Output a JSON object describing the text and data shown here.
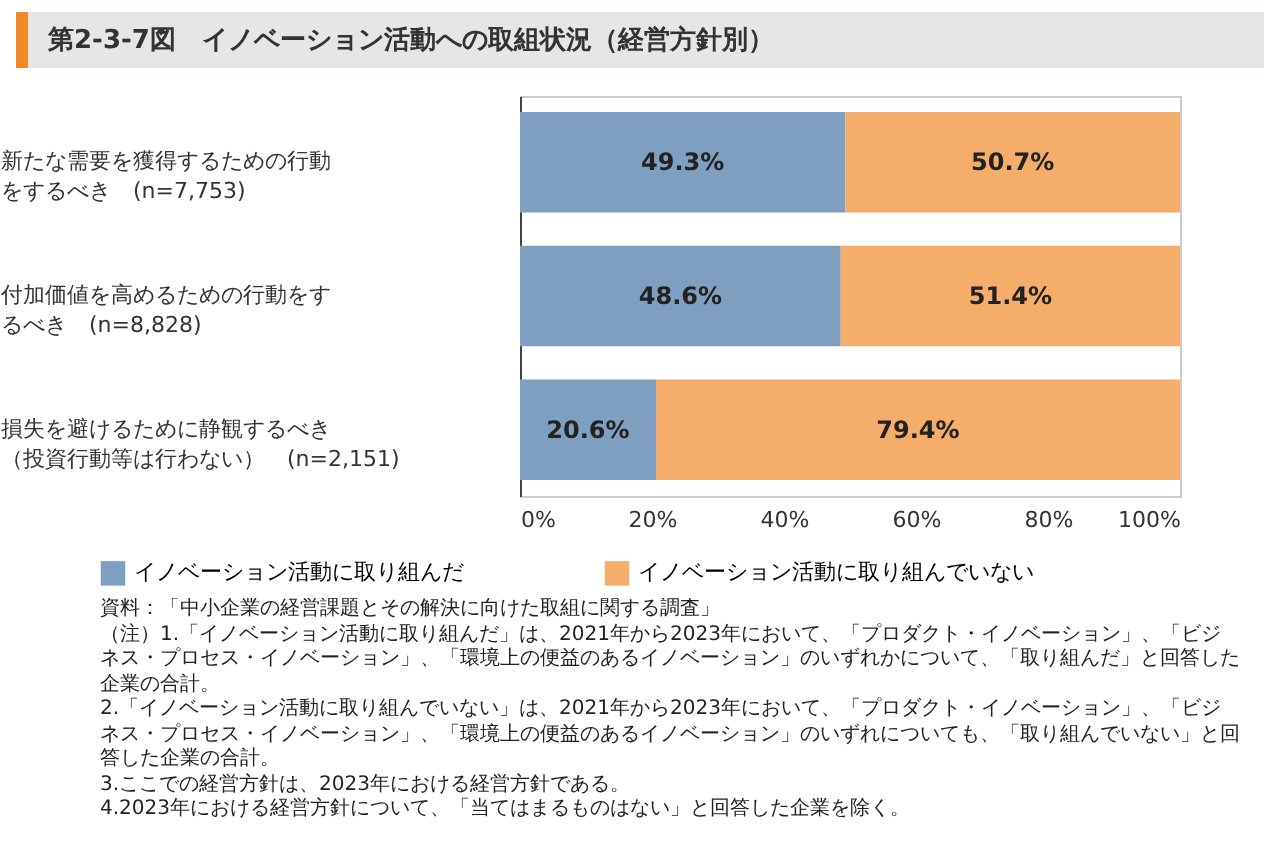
{
  "chart_data": {
    "type": "bar",
    "orientation": "horizontal",
    "stacked": true,
    "title": "第2-3-7図　イノベーション活動への取組状況（経営方針別）",
    "categories": [
      "新たな需要を獲得するための行動をするべき (n=7,753)",
      "付加価値を高めるための行動をするべき (n=8,828)",
      "損失を避けるために静観するべき（投資行動等は行わない） (n=2,151)"
    ],
    "series": [
      {
        "name": "イノベーション活動に取り組んだ",
        "color": "#7f9fc0",
        "values": [
          49.3,
          48.6,
          20.6
        ],
        "value_labels": [
          "49.3%",
          "48.6%",
          "20.6%"
        ]
      },
      {
        "name": "イノベーション活動に取り組んでいない",
        "color": "#f5ad6b",
        "values": [
          50.7,
          51.4,
          79.4
        ],
        "value_labels": [
          "50.7%",
          "51.4%",
          "79.4%"
        ]
      }
    ],
    "xlim": [
      0,
      100
    ],
    "xticks": [
      {
        "value": 0,
        "label": "0%"
      },
      {
        "value": 20,
        "label": "20%"
      },
      {
        "value": 40,
        "label": "40%"
      },
      {
        "value": 60,
        "label": "60%"
      },
      {
        "value": 80,
        "label": "80%"
      },
      {
        "value": 100,
        "label": "100%"
      }
    ],
    "legend": "bottom",
    "annotations": [
      "資料：「中小企業の経営課題とその解決に向けた取組に関する調査」",
      "（注）1.「イノベーション活動に取り組んだ」は、2021年から2023年において、「プロダクト・イノベーション」、「ビジネス・プロセス・イノベーション」、「環境上の便益のあるイノベーション」のいずれかについて、「取り組んだ」と回答した企業の合計。",
      "2.「イノベーション活動に取り組んでいない」は、2021年から2023年において、「プロダクト・イノベーション」、「ビジネス・プロセス・イノベーション」、「環境上の便益のあるイノベーション」のいずれについても、「取り組んでいない」と回答した企業の合計。",
      "3.ここでの経営方針は、2023年における経営方針である。",
      "4.2023年における経営方針について、「当てはまるものはない」と回答した企業を除く。"
    ]
  }
}
